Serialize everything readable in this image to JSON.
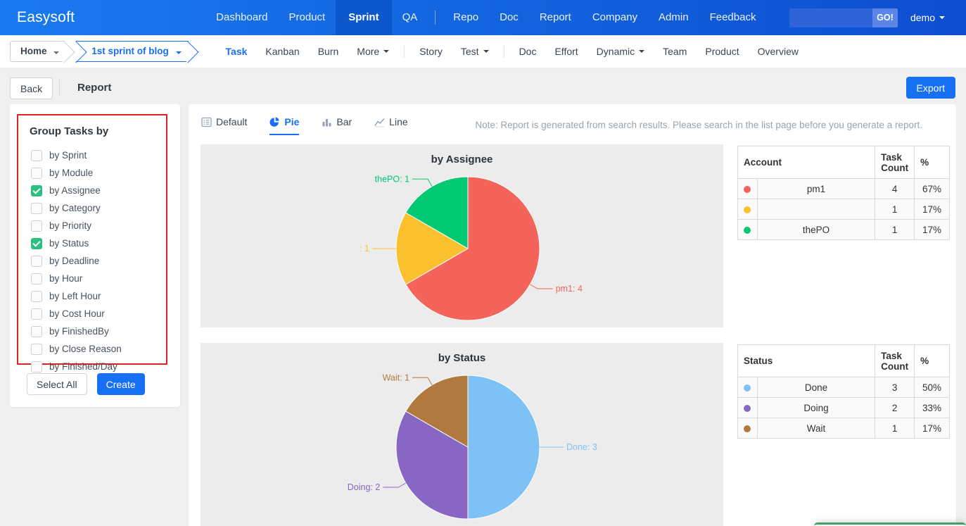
{
  "navbar": {
    "brand": "Easysoft",
    "items": [
      {
        "label": "Dashboard"
      },
      {
        "label": "Product"
      },
      {
        "label": "Sprint",
        "active": true
      },
      {
        "label": "QA"
      },
      {
        "divider": true
      },
      {
        "label": "Repo"
      },
      {
        "label": "Doc"
      },
      {
        "label": "Report"
      },
      {
        "label": "Company"
      },
      {
        "label": "Admin"
      },
      {
        "label": "Feedback"
      }
    ],
    "search": {
      "value": "",
      "placeholder": "",
      "go_label": "GO!"
    },
    "user": "demo"
  },
  "subnav": {
    "breadcrumb": {
      "home": "Home",
      "current": "1st sprint of blog"
    },
    "items": [
      {
        "label": "Task",
        "active": true
      },
      {
        "label": "Kanban"
      },
      {
        "label": "Burn"
      },
      {
        "label": "More",
        "dropdown": true
      },
      {
        "divider": true
      },
      {
        "label": "Story"
      },
      {
        "label": "Test",
        "dropdown": true
      },
      {
        "divider": true
      },
      {
        "label": "Doc"
      },
      {
        "label": "Effort"
      },
      {
        "label": "Dynamic",
        "dropdown": true
      },
      {
        "label": "Team"
      },
      {
        "label": "Product"
      },
      {
        "label": "Overview"
      }
    ]
  },
  "toolbar": {
    "back_label": "Back",
    "title": "Report",
    "export_label": "Export"
  },
  "sidebar": {
    "heading": "Group Tasks by",
    "options": [
      {
        "label": "by Sprint",
        "checked": false
      },
      {
        "label": "by Module",
        "checked": false
      },
      {
        "label": "by Assignee",
        "checked": true
      },
      {
        "label": "by Category",
        "checked": false
      },
      {
        "label": "by Priority",
        "checked": false
      },
      {
        "label": "by Status",
        "checked": true
      },
      {
        "label": "by Deadline",
        "checked": false
      },
      {
        "label": "by Hour",
        "checked": false
      },
      {
        "label": "by Left Hour",
        "checked": false
      },
      {
        "label": "by Cost Hour",
        "checked": false
      },
      {
        "label": "by FinishedBy",
        "checked": false
      },
      {
        "label": "by Close Reason",
        "checked": false
      },
      {
        "label": "by Finished/Day",
        "checked": false
      }
    ],
    "select_all_label": "Select All",
    "create_label": "Create"
  },
  "report": {
    "tabs": [
      {
        "label": "Default",
        "icon": "list-icon",
        "active": false
      },
      {
        "label": "Pie",
        "icon": "pie-icon",
        "active": true
      },
      {
        "label": "Bar",
        "icon": "bar-icon",
        "active": false
      },
      {
        "label": "Line",
        "icon": "line-icon",
        "active": false
      }
    ],
    "note": "Note: Report is generated from search results. Please search in the list page before you generate a report."
  },
  "chart_data": [
    {
      "type": "pie",
      "title": "by Assignee",
      "legend_position": "none",
      "series": [
        {
          "name": "pm1",
          "value": 4,
          "percent": "67%",
          "color": "#f4645b",
          "label": "pm1: 4"
        },
        {
          "name": "",
          "value": 1,
          "percent": "17%",
          "color": "#fbc02e",
          "label": ": 1"
        },
        {
          "name": "thePO",
          "value": 1,
          "percent": "17%",
          "color": "#00c873",
          "label": "thePO: 1"
        }
      ],
      "table": {
        "headers": [
          "Account",
          "Task Count",
          "%"
        ],
        "rows": [
          [
            "pm1",
            "4",
            "67%"
          ],
          [
            "",
            "1",
            "17%"
          ],
          [
            "thePO",
            "1",
            "17%"
          ]
        ]
      }
    },
    {
      "type": "pie",
      "title": "by Status",
      "legend_position": "none",
      "series": [
        {
          "name": "Done",
          "value": 3,
          "percent": "50%",
          "color": "#7ec2f5",
          "label": "Done: 3"
        },
        {
          "name": "Doing",
          "value": 2,
          "percent": "33%",
          "color": "#8766c4",
          "label": "Doing: 2"
        },
        {
          "name": "Wait",
          "value": 1,
          "percent": "17%",
          "color": "#b0793f",
          "label": "Wait: 1"
        }
      ],
      "table": {
        "headers": [
          "Status",
          "Task Count",
          "%"
        ],
        "rows": [
          [
            "Done",
            "3",
            "50%"
          ],
          [
            "Doing",
            "2",
            "33%"
          ],
          [
            "Wait",
            "1",
            "17%"
          ]
        ]
      }
    }
  ],
  "colors": {
    "accent": "#186ff2",
    "navbar_gradient_start": "#1a79f0",
    "navbar_gradient_end": "#0d4ed0",
    "annotation_box": "#e02222",
    "checkbox_checked": "#2dbe82",
    "toast_accent": "#44a066"
  }
}
